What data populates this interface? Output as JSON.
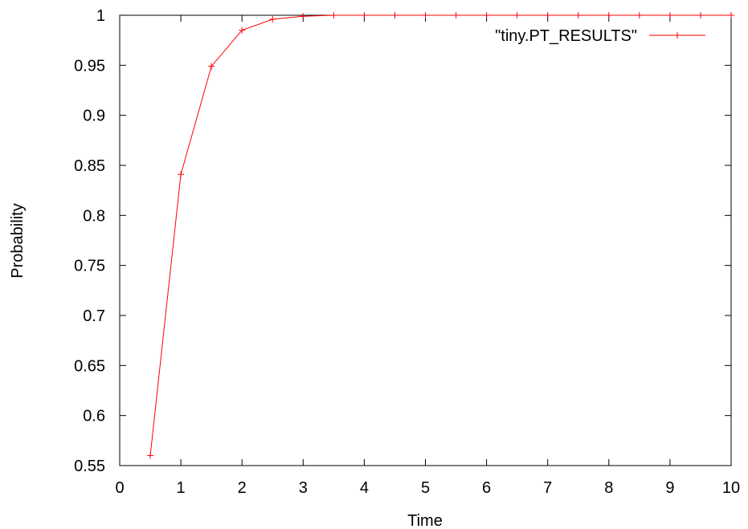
{
  "chart_data": {
    "type": "line",
    "title": "",
    "xlabel": "Time",
    "ylabel": "Probability",
    "xlim": [
      0,
      10
    ],
    "ylim": [
      0.55,
      1
    ],
    "x_ticks": [
      "0",
      "1",
      "2",
      "3",
      "4",
      "5",
      "6",
      "7",
      "8",
      "9",
      "10"
    ],
    "y_ticks": [
      "0.55",
      "0.6",
      "0.65",
      "0.7",
      "0.75",
      "0.8",
      "0.85",
      "0.9",
      "0.95",
      "1"
    ],
    "grid": false,
    "legend_position": "top-right",
    "series": [
      {
        "name": "\"tiny.PT_RESULTS\"",
        "color": "#ff0000",
        "marker": "plus",
        "x": [
          0.5,
          1,
          1.5,
          2,
          2.5,
          3,
          3.5,
          4,
          4.5,
          5,
          5.5,
          6,
          6.5,
          7,
          7.5,
          8,
          8.5,
          9,
          9.5,
          10
        ],
        "y": [
          0.56,
          0.841,
          0.949,
          0.985,
          0.996,
          0.999,
          1,
          1,
          1,
          1,
          1,
          1,
          1,
          1,
          1,
          1,
          1,
          1,
          1,
          1
        ]
      }
    ]
  }
}
